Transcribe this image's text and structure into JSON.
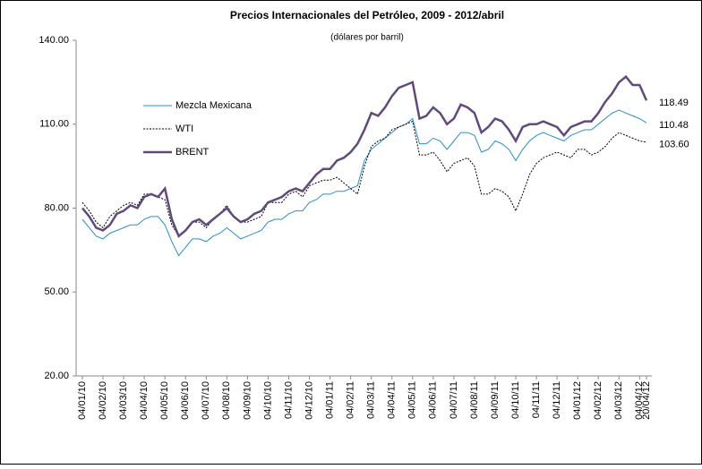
{
  "chart_data": {
    "type": "line",
    "title": "Precios Internacionales del Petróleo, 2009 - 2012/abril",
    "subtitle": "(dólares por barril)",
    "categories": [
      "04/01/10",
      null,
      null,
      "04/02/10",
      null,
      null,
      "04/03/10",
      null,
      null,
      "04/04/10",
      null,
      null,
      "04/05/10",
      null,
      null,
      "04/06/10",
      null,
      null,
      "04/07/10",
      null,
      null,
      "04/08/10",
      null,
      null,
      "04/09/10",
      null,
      null,
      "04/10/10",
      null,
      null,
      "04/11/10",
      null,
      null,
      "04/12/10",
      null,
      null,
      "04/01/11",
      null,
      null,
      "04/02/11",
      null,
      null,
      "04/03/11",
      null,
      null,
      "04/04/11",
      null,
      null,
      "04/05/11",
      null,
      null,
      "04/06/11",
      null,
      null,
      "04/07/11",
      null,
      null,
      "04/08/11",
      null,
      null,
      "04/09/11",
      null,
      null,
      "04/10/11",
      null,
      null,
      "04/11/11",
      null,
      null,
      "04/12/11",
      null,
      null,
      "04/01/12",
      null,
      null,
      "04/02/12",
      null,
      null,
      "04/03/12",
      null,
      null,
      "04/04/12",
      "20/04/12"
    ],
    "series": [
      {
        "name": "Mezcla Mexicana",
        "color": "#2a8fc6",
        "style": "solid",
        "width": 1,
        "last_label": "110.48",
        "values": [
          76,
          73,
          70,
          69,
          71,
          72,
          73,
          74,
          74,
          76,
          77,
          77,
          74,
          68,
          63,
          66,
          69,
          69,
          68,
          70,
          71,
          73,
          71,
          69,
          70,
          71,
          72,
          75,
          76,
          76,
          78,
          79,
          79,
          82,
          83,
          85,
          85,
          86,
          86,
          87,
          88,
          97,
          101,
          103,
          105,
          107,
          109,
          110,
          112,
          103,
          103,
          105,
          104,
          101,
          104,
          107,
          107,
          106,
          100,
          101,
          104,
          103,
          101,
          97,
          101,
          104,
          106,
          107,
          106,
          105,
          104,
          106,
          107,
          108,
          108,
          110,
          112,
          114,
          115,
          114,
          113,
          112,
          110.48
        ]
      },
      {
        "name": "WTI",
        "color": "#000000",
        "style": "dashed",
        "width": 1,
        "last_label": "103.60",
        "values": [
          82,
          79,
          75,
          73,
          77,
          79,
          81,
          82,
          81,
          85,
          85,
          84,
          83,
          74,
          70,
          72,
          75,
          75,
          73,
          76,
          78,
          81,
          77,
          75,
          75,
          76,
          77,
          82,
          82,
          82,
          85,
          86,
          84,
          88,
          89,
          90,
          90,
          91,
          89,
          87,
          85,
          95,
          102,
          104,
          105,
          108,
          109,
          110,
          111,
          99,
          99,
          100,
          97,
          93,
          96,
          97,
          98,
          95,
          85,
          85,
          87,
          86,
          84,
          79,
          85,
          92,
          96,
          98,
          99,
          100,
          99,
          98,
          101,
          101,
          99,
          100,
          102,
          105,
          107,
          106,
          105,
          104,
          103.6
        ]
      },
      {
        "name": "BRENT",
        "color": "#604a7b",
        "style": "solid",
        "width": 2.5,
        "last_label": "118.49",
        "values": [
          80,
          77,
          73,
          72,
          74,
          78,
          79,
          81,
          80,
          84,
          85,
          84,
          87,
          76,
          70,
          72,
          75,
          76,
          74,
          76,
          78,
          80,
          77,
          75,
          76,
          78,
          79,
          82,
          83,
          84,
          86,
          87,
          86,
          89,
          92,
          94,
          94,
          97,
          98,
          100,
          103,
          108,
          114,
          113,
          116,
          120,
          123,
          124,
          125,
          112,
          113,
          116,
          114,
          110,
          112,
          117,
          116,
          114,
          107,
          109,
          112,
          111,
          108,
          104,
          109,
          110,
          110,
          111,
          110,
          109,
          106,
          109,
          110,
          111,
          111,
          114,
          118,
          121,
          125,
          127,
          124,
          124,
          118.49
        ]
      }
    ],
    "ylim": [
      20,
      140
    ],
    "yticks": [
      {
        "value": 20,
        "label": "20.00"
      },
      {
        "value": 50,
        "label": "50.00"
      },
      {
        "value": 80,
        "label": "80.00"
      },
      {
        "value": 110,
        "label": "110.00"
      },
      {
        "value": 140,
        "label": "140.00"
      }
    ],
    "legend": "upper left",
    "grid": false
  }
}
